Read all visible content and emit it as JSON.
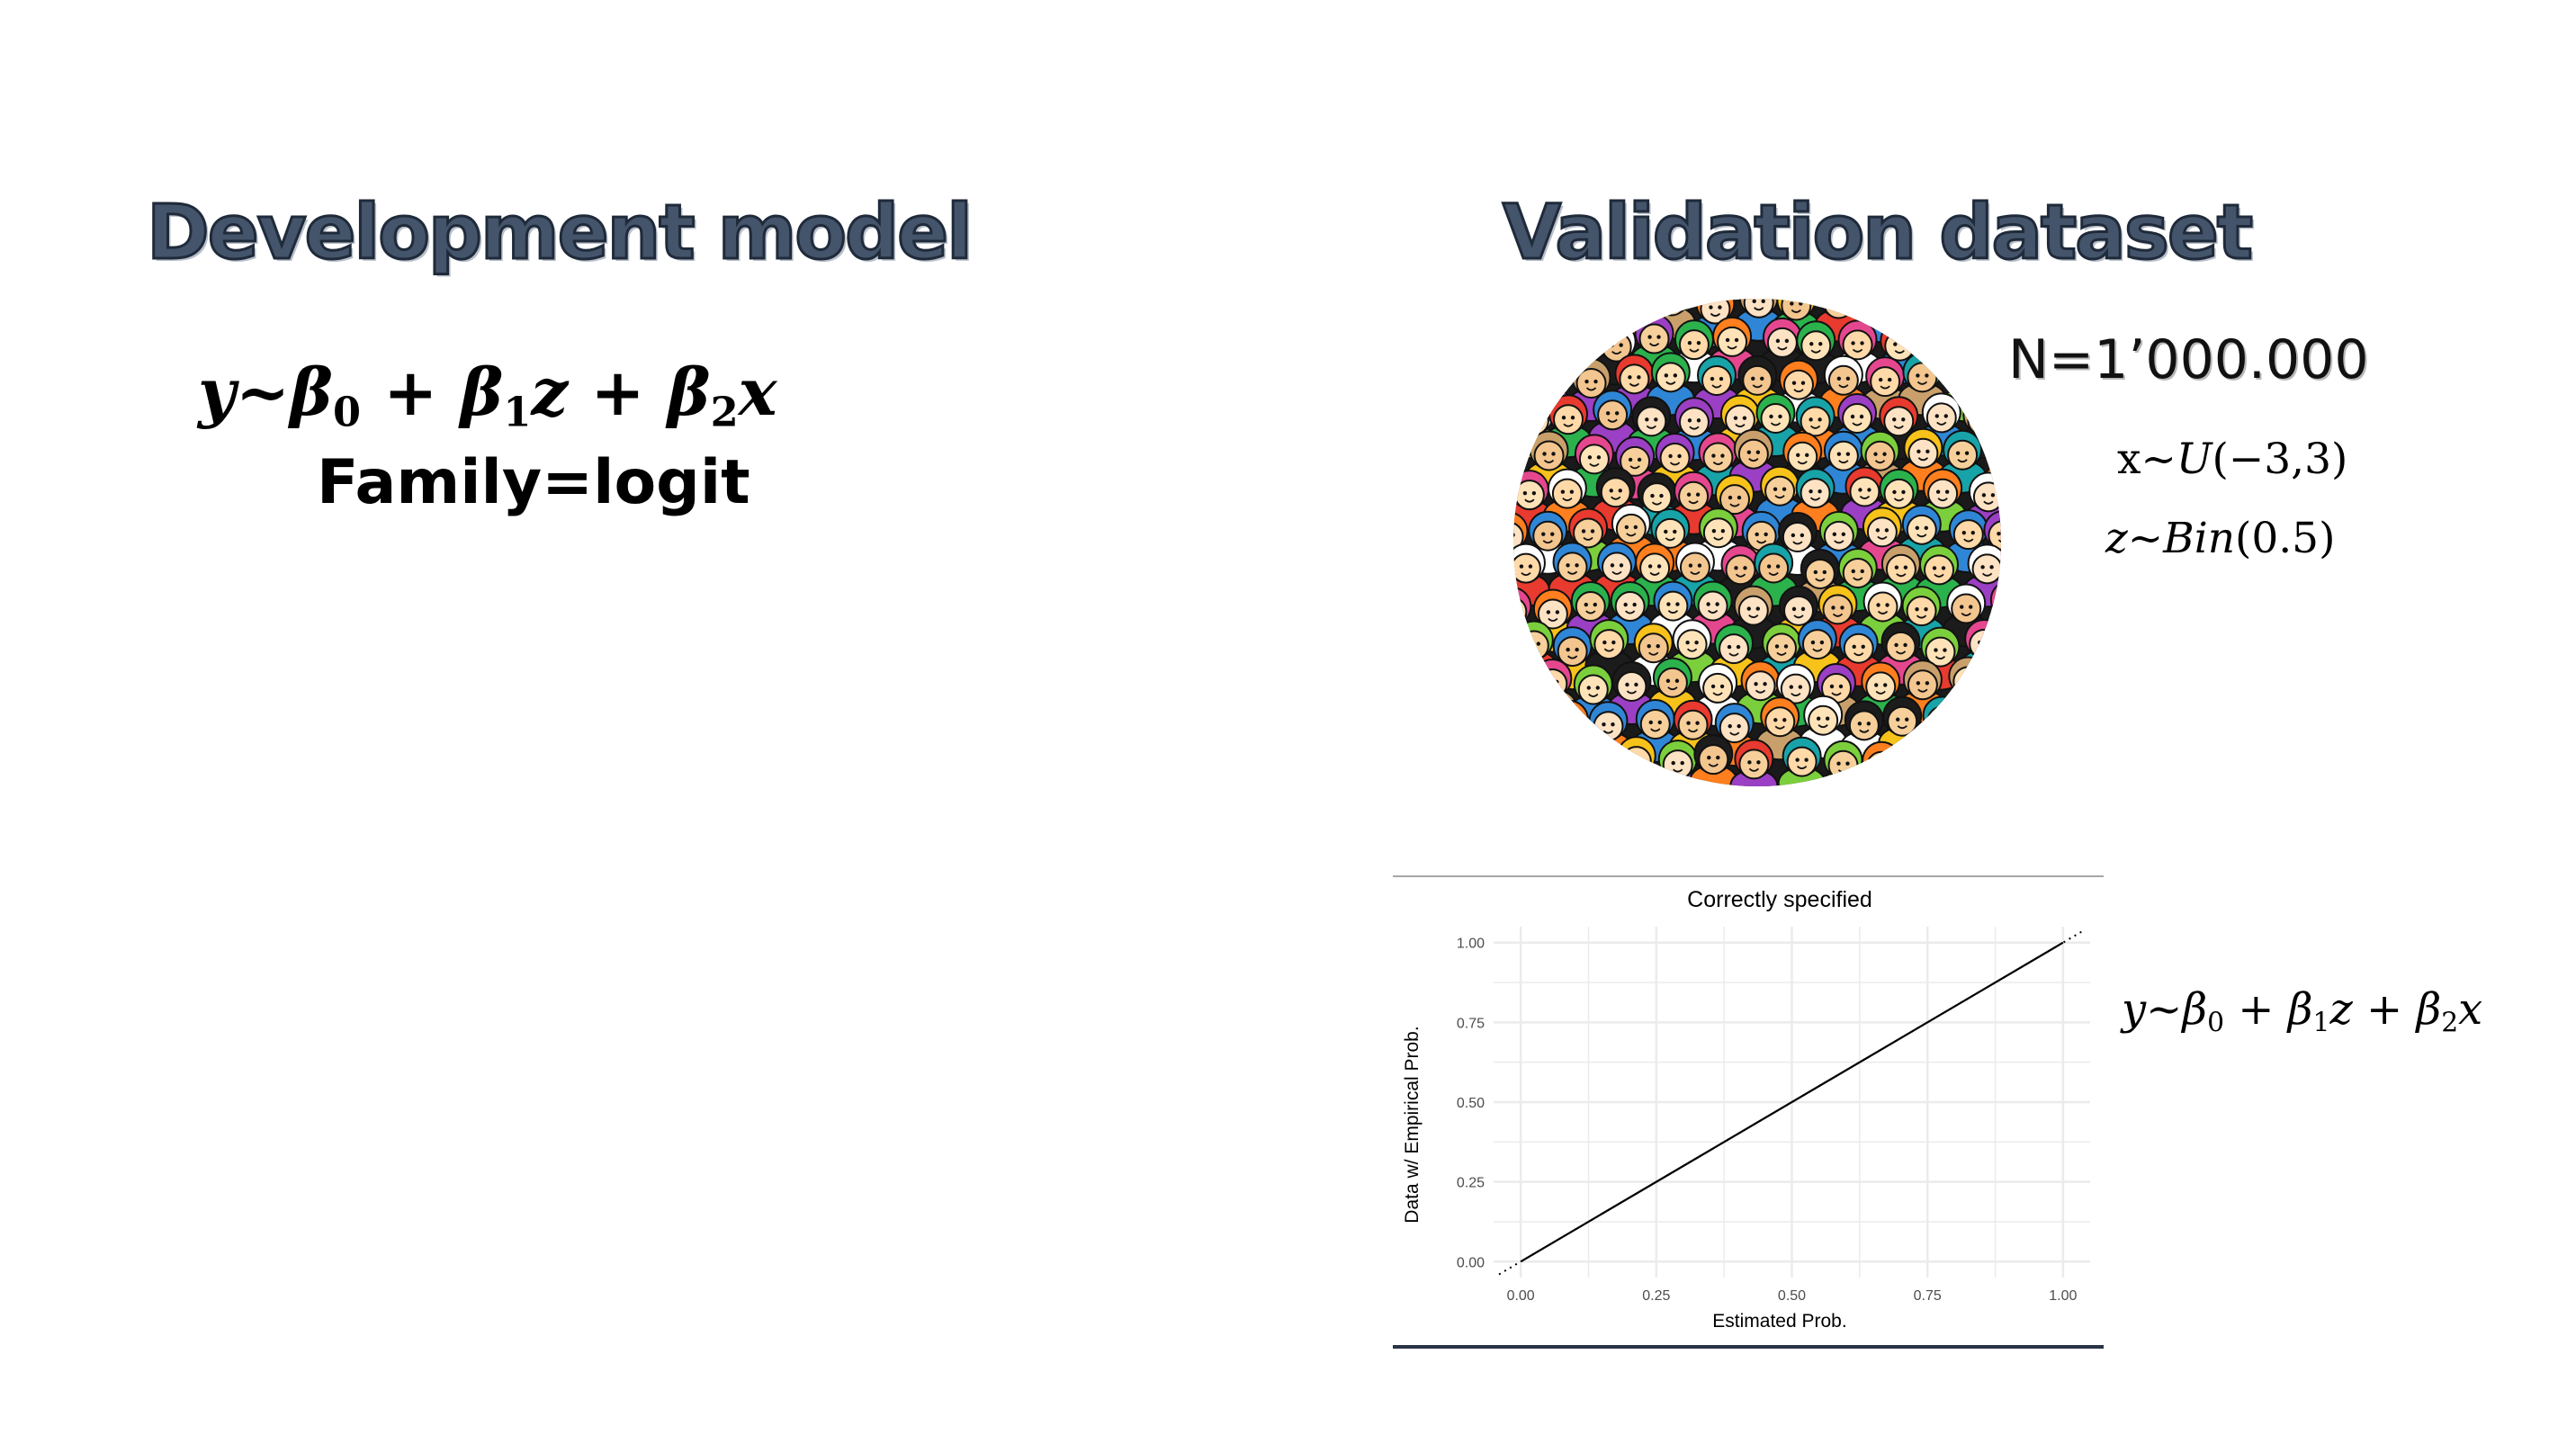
{
  "left_panel": {
    "title": "Development model",
    "formula": {
      "y": "y",
      "tilde": "~",
      "beta": "β",
      "sub0": "0",
      "sub1": "1",
      "sub2": "2",
      "plus": " + ",
      "z": "z",
      "x": "x"
    },
    "family": "Family=logit"
  },
  "right_panel": {
    "title": "Validation dataset",
    "sample_size": "N=1’000.000",
    "x_dist": {
      "var": "x",
      "tilde": "~",
      "dist": "U",
      "args": "(−3,3)"
    },
    "z_dist": {
      "var": "z",
      "tilde": "~",
      "dist": "Bin",
      "args": "(0.5)"
    },
    "fitted_formula": {
      "y": "y",
      "tilde": "~",
      "beta": "β",
      "sub0": "0",
      "sub1": "1",
      "sub2": "2",
      "plus": " + ",
      "z": "z",
      "x": "x"
    }
  },
  "colors": {
    "heading_fill": "#44546a",
    "heading_outline": "#1f2a3a",
    "grid": "#ebebeb",
    "line": "#000000",
    "chart_bottom_rule": "#2a3446"
  },
  "chart_data": {
    "type": "line",
    "title": "Correctly specified",
    "xlabel": "Estimated Prob.",
    "ylabel": "Data w/ Empirical Prob.",
    "xlim": [
      0,
      1
    ],
    "ylim": [
      0,
      1
    ],
    "x_ticks": [
      "0.00",
      "0.25",
      "0.50",
      "0.75",
      "1.00"
    ],
    "y_ticks": [
      "0.00",
      "0.25",
      "0.50",
      "0.75",
      "1.00"
    ],
    "grid": true,
    "legend": "none",
    "series": [
      {
        "style": "solid",
        "x": [
          0.0,
          1.0
        ],
        "y": [
          0.0,
          1.0
        ]
      },
      {
        "style": "dotted",
        "x": [
          -0.04,
          1.04
        ],
        "y": [
          -0.04,
          1.04
        ]
      }
    ]
  }
}
